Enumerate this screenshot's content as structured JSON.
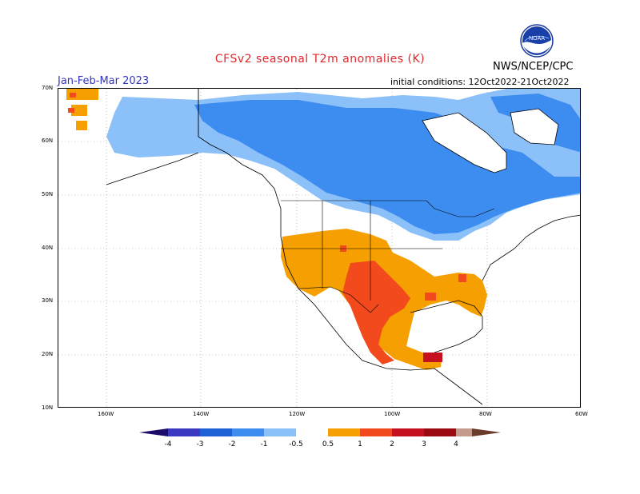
{
  "header": {
    "title": "CFSv2 seasonal T2m anomalies (K)",
    "season": "Jan-Feb-Mar 2023",
    "agency": "NWS/NCEP/CPC",
    "initial_conditions": "initial conditions: 12Oct2022-21Oct2022",
    "logo_text": "NOAA"
  },
  "map": {
    "lat_labels": [
      "70N",
      "60N",
      "50N",
      "40N",
      "30N",
      "20N",
      "10N"
    ],
    "lon_labels": [
      "160W",
      "140W",
      "120W",
      "100W",
      "80W",
      "60W"
    ]
  },
  "colorbar": {
    "ticks": [
      "-4",
      "-3",
      "-2",
      "-1",
      "-0.5",
      "0.5",
      "1",
      "2",
      "3",
      "4"
    ],
    "colors": {
      "below_-4": "#1e0a6b",
      "-4_-3": "#3b39c2",
      "-3_-2": "#1e5fd6",
      "-2_-1": "#3d8cf0",
      "-1_-0.5": "#8cc0f8",
      "-0.5_0.5": "#ffffff",
      "0.5_1": "#f5a000",
      "1_2": "#f24a1c",
      "2_3": "#c7101f",
      "3_4": "#9a0a10",
      "above_4": "#c49a8c",
      "extreme": "#6b3b2c"
    }
  },
  "anomaly_colors": {
    "light_blue": "#8cc0f8",
    "blue": "#3d8cf0",
    "orange": "#f5a000",
    "red": "#f24a1c",
    "dark_red": "#c7101f"
  }
}
